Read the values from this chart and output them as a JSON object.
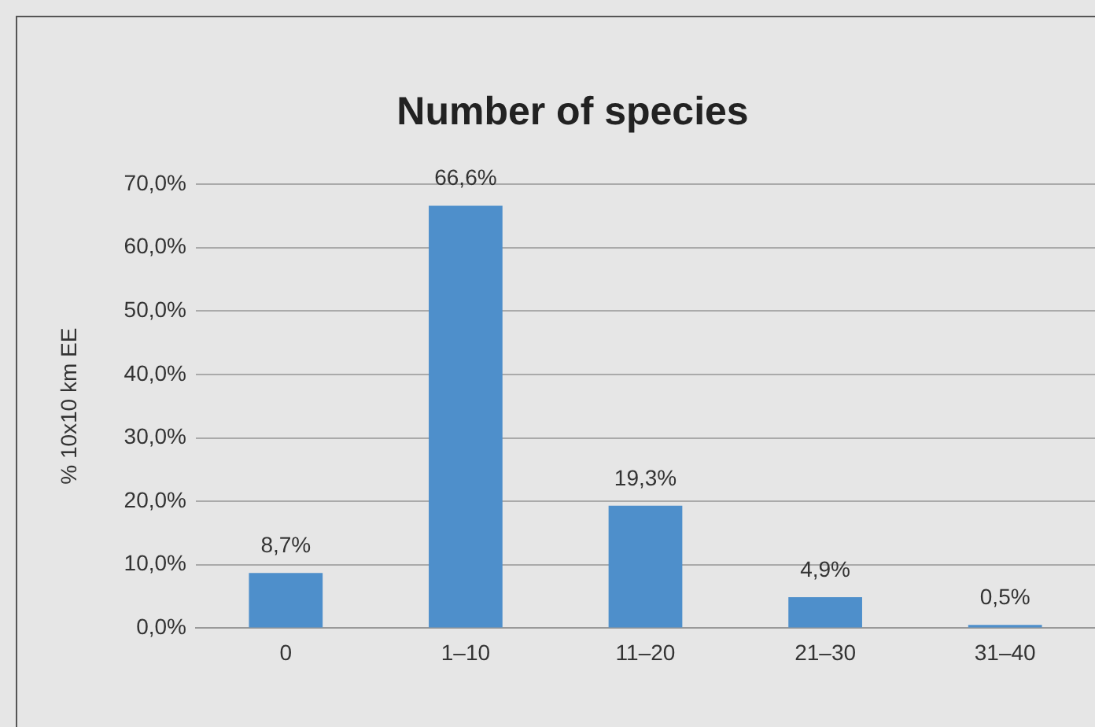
{
  "chart_data": {
    "type": "bar",
    "title": "Number of species",
    "ylabel": "% 10x10 km EE",
    "categories": [
      "0",
      "1–10",
      "11–20",
      "21–30",
      "31–40"
    ],
    "values": [
      8.7,
      66.6,
      19.3,
      4.9,
      0.5
    ],
    "color": "#4e8fcb",
    "value_labels": [
      "8,7%",
      "66,6%",
      "19,3%",
      "4,9%",
      "0,5%"
    ],
    "ylim": [
      0,
      70
    ],
    "yticks": [
      {
        "value": 0,
        "label": "0,0%"
      },
      {
        "value": 10,
        "label": "10,0%"
      },
      {
        "value": 20,
        "label": "20,0%"
      },
      {
        "value": 30,
        "label": "30,0%"
      },
      {
        "value": 40,
        "label": "40,0%"
      },
      {
        "value": 50,
        "label": "50,0%"
      },
      {
        "value": 60,
        "label": "60,0%"
      },
      {
        "value": 70,
        "label": "70,0%"
      }
    ],
    "grid": "y",
    "legend": false
  }
}
